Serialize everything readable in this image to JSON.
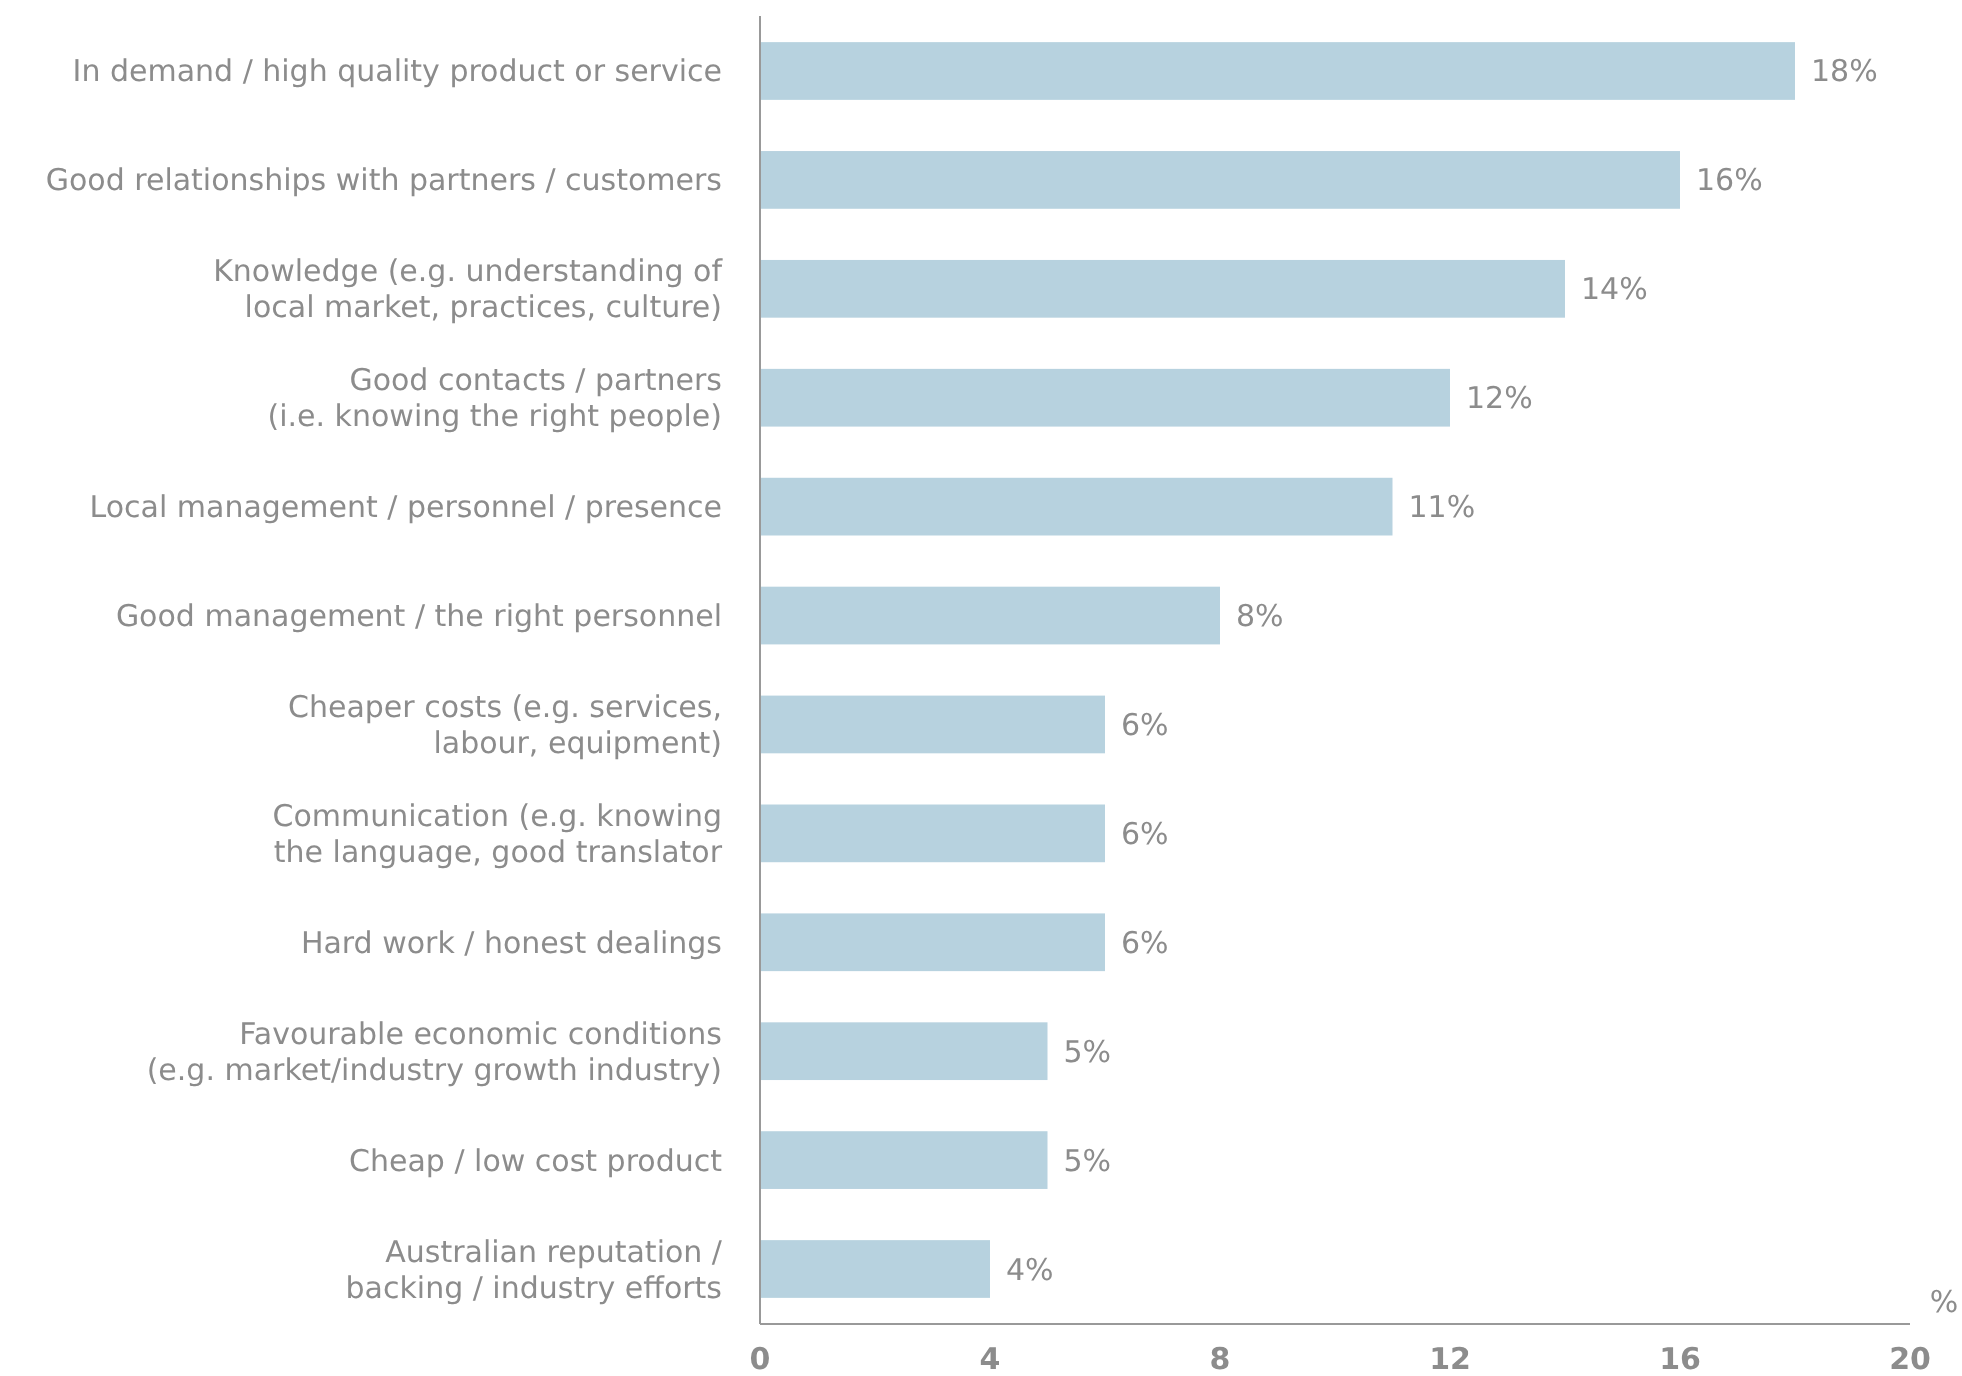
{
  "chart_data": {
    "type": "bar",
    "orientation": "horizontal",
    "xlabel": "%",
    "categories": [
      "In demand / high quality product or service",
      "Good relationships with partners / customers",
      "Knowledge (e.g. understanding of\nlocal market, practices, culture)",
      "Good contacts / partners\n(i.e. knowing the right people)",
      "Local management / personnel / presence",
      "Good management / the right personnel",
      "Cheaper costs (e.g. services,\nlabour, equipment)",
      "Communication (e.g. knowing\nthe language, good translator",
      "Hard work / honest dealings",
      "Favourable economic conditions\n(e.g. market/industry growth industry)",
      "Cheap / low cost product",
      "Australian reputation /\nbacking / industry efforts"
    ],
    "values": [
      18,
      16,
      14,
      12,
      11,
      8,
      6,
      6,
      6,
      5,
      5,
      4
    ],
    "value_labels": [
      "18%",
      "16%",
      "14%",
      "12%",
      "11%",
      "8%",
      "6%",
      "6%",
      "6%",
      "5%",
      "5%",
      "4%"
    ],
    "color": "#b7d2df",
    "xlim": [
      0,
      20
    ],
    "xticks": [
      0,
      4,
      8,
      12,
      16,
      20
    ],
    "grid": false
  }
}
